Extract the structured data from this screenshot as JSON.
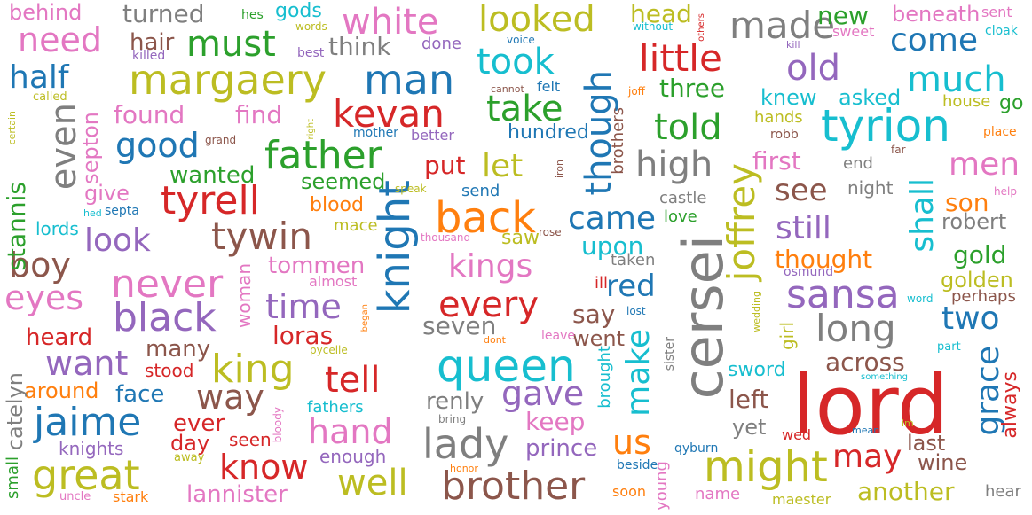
{
  "palette": {
    "blue": "#1f77b4",
    "orange": "#ff7f0e",
    "green": "#2ca02c",
    "red": "#d62728",
    "purple": "#9467bd",
    "brown": "#8c564b",
    "pink": "#e377c2",
    "gray": "#7f7f7f",
    "olive": "#bcbd22",
    "cyan": "#17becf"
  },
  "words": [
    {
      "text": "lord",
      "color": "red"
    },
    {
      "text": "cersei",
      "color": "gray"
    },
    {
      "text": "queen",
      "color": "cyan"
    },
    {
      "text": "tyrion",
      "color": "cyan"
    },
    {
      "text": "knight",
      "color": "blue"
    },
    {
      "text": "joffrey",
      "color": "olive"
    },
    {
      "text": "margaery",
      "color": "olive"
    },
    {
      "text": "man",
      "color": "blue"
    },
    {
      "text": "father",
      "color": "green"
    },
    {
      "text": "king",
      "color": "olive"
    },
    {
      "text": "black",
      "color": "purple"
    },
    {
      "text": "never",
      "color": "pink"
    },
    {
      "text": "back",
      "color": "orange"
    },
    {
      "text": "might",
      "color": "olive"
    },
    {
      "text": "brother",
      "color": "brown"
    },
    {
      "text": "jaime",
      "color": "blue"
    },
    {
      "text": "great",
      "color": "olive"
    },
    {
      "text": "lady",
      "color": "gray"
    },
    {
      "text": "sansa",
      "color": "purple"
    },
    {
      "text": "tyrell",
      "color": "red"
    },
    {
      "text": "tywin",
      "color": "brown"
    },
    {
      "text": "kevan",
      "color": "red"
    },
    {
      "text": "little",
      "color": "red"
    },
    {
      "text": "made",
      "color": "gray"
    },
    {
      "text": "white",
      "color": "pink"
    },
    {
      "text": "must",
      "color": "green"
    },
    {
      "text": "looked",
      "color": "olive"
    },
    {
      "text": "even",
      "color": "gray"
    },
    {
      "text": "took",
      "color": "cyan"
    },
    {
      "text": "take",
      "color": "green"
    },
    {
      "text": "though",
      "color": "blue"
    },
    {
      "text": "told",
      "color": "green"
    },
    {
      "text": "high",
      "color": "gray"
    },
    {
      "text": "much",
      "color": "cyan"
    },
    {
      "text": "old",
      "color": "purple"
    },
    {
      "text": "come",
      "color": "blue"
    },
    {
      "text": "need",
      "color": "pink"
    },
    {
      "text": "half",
      "color": "blue"
    },
    {
      "text": "good",
      "color": "blue"
    },
    {
      "text": "look",
      "color": "purple"
    },
    {
      "text": "boy",
      "color": "brown"
    },
    {
      "text": "eyes",
      "color": "pink"
    },
    {
      "text": "time",
      "color": "purple"
    },
    {
      "text": "kings",
      "color": "pink"
    },
    {
      "text": "every",
      "color": "red"
    },
    {
      "text": "came",
      "color": "blue"
    },
    {
      "text": "let",
      "color": "olive"
    },
    {
      "text": "still",
      "color": "purple"
    },
    {
      "text": "see",
      "color": "brown"
    },
    {
      "text": "shall",
      "color": "cyan"
    },
    {
      "text": "men",
      "color": "pink"
    },
    {
      "text": "long",
      "color": "gray"
    },
    {
      "text": "two",
      "color": "blue"
    },
    {
      "text": "grace",
      "color": "blue"
    },
    {
      "text": "make",
      "color": "cyan"
    },
    {
      "text": "tell",
      "color": "red"
    },
    {
      "text": "hand",
      "color": "pink"
    },
    {
      "text": "know",
      "color": "red"
    },
    {
      "text": "well",
      "color": "olive"
    },
    {
      "text": "way",
      "color": "brown"
    },
    {
      "text": "gave",
      "color": "purple"
    },
    {
      "text": "want",
      "color": "purple"
    },
    {
      "text": "may",
      "color": "red"
    },
    {
      "text": "us",
      "color": "orange"
    },
    {
      "text": "red",
      "color": "blue"
    },
    {
      "text": "loras",
      "color": "red"
    },
    {
      "text": "stannis",
      "color": "green"
    },
    {
      "text": "across",
      "color": "brown"
    },
    {
      "text": "gold",
      "color": "green"
    },
    {
      "text": "thought",
      "color": "orange"
    },
    {
      "text": "first",
      "color": "pink"
    },
    {
      "text": "three",
      "color": "green"
    },
    {
      "text": "new",
      "color": "green"
    },
    {
      "text": "head",
      "color": "olive"
    },
    {
      "text": "found",
      "color": "pink"
    },
    {
      "text": "find",
      "color": "pink"
    },
    {
      "text": "turned",
      "color": "gray"
    },
    {
      "text": "hair",
      "color": "brown"
    },
    {
      "text": "think",
      "color": "gray"
    },
    {
      "text": "put",
      "color": "red"
    },
    {
      "text": "seemed",
      "color": "green"
    },
    {
      "text": "wanted",
      "color": "green"
    },
    {
      "text": "tommen",
      "color": "pink"
    },
    {
      "text": "upon",
      "color": "cyan"
    },
    {
      "text": "seven",
      "color": "gray"
    },
    {
      "text": "say",
      "color": "brown"
    },
    {
      "text": "went",
      "color": "brown"
    },
    {
      "text": "renly",
      "color": "gray"
    },
    {
      "text": "keep",
      "color": "pink"
    },
    {
      "text": "prince",
      "color": "purple"
    },
    {
      "text": "heard",
      "color": "red"
    },
    {
      "text": "many",
      "color": "brown"
    },
    {
      "text": "face",
      "color": "blue"
    },
    {
      "text": "around",
      "color": "orange"
    },
    {
      "text": "ever",
      "color": "red"
    },
    {
      "text": "day",
      "color": "red"
    },
    {
      "text": "lannister",
      "color": "pink"
    },
    {
      "text": "enough",
      "color": "purple"
    },
    {
      "text": "wine",
      "color": "brown"
    },
    {
      "text": "last",
      "color": "brown"
    },
    {
      "text": "another",
      "color": "olive"
    },
    {
      "text": "robert",
      "color": "gray"
    },
    {
      "text": "son",
      "color": "orange"
    },
    {
      "text": "golden",
      "color": "olive"
    },
    {
      "text": "asked",
      "color": "cyan"
    },
    {
      "text": "knew",
      "color": "cyan"
    },
    {
      "text": "beneath",
      "color": "pink"
    },
    {
      "text": "catelyn",
      "color": "gray"
    },
    {
      "text": "left",
      "color": "brown"
    },
    {
      "text": "yet",
      "color": "gray"
    },
    {
      "text": "sword",
      "color": "cyan"
    },
    {
      "text": "always",
      "color": "red"
    },
    {
      "text": "behind",
      "color": "pink"
    },
    {
      "text": "hundred",
      "color": "blue"
    },
    {
      "text": "septon",
      "color": "pink"
    },
    {
      "text": "give",
      "color": "pink"
    },
    {
      "text": "lords",
      "color": "cyan"
    },
    {
      "text": "blood",
      "color": "orange"
    },
    {
      "text": "mace",
      "color": "olive"
    },
    {
      "text": "saw",
      "color": "olive"
    },
    {
      "text": "stood",
      "color": "red"
    },
    {
      "text": "knights",
      "color": "purple"
    },
    {
      "text": "seen",
      "color": "red"
    },
    {
      "text": "stark",
      "color": "orange"
    },
    {
      "text": "small",
      "color": "green"
    },
    {
      "text": "girl",
      "color": "olive"
    },
    {
      "text": "perhaps",
      "color": "brown"
    },
    {
      "text": "hear",
      "color": "gray"
    },
    {
      "text": "maester",
      "color": "olive"
    },
    {
      "text": "name",
      "color": "pink"
    },
    {
      "text": "soon",
      "color": "orange"
    },
    {
      "text": "young",
      "color": "pink"
    },
    {
      "text": "brought",
      "color": "cyan"
    },
    {
      "text": "woman",
      "color": "pink"
    },
    {
      "text": "fathers",
      "color": "cyan"
    },
    {
      "text": "ill",
      "color": "red"
    },
    {
      "text": "taken",
      "color": "gray"
    },
    {
      "text": "night",
      "color": "gray"
    },
    {
      "text": "castle",
      "color": "gray"
    },
    {
      "text": "love",
      "color": "green"
    },
    {
      "text": "end",
      "color": "gray"
    },
    {
      "text": "hands",
      "color": "olive"
    },
    {
      "text": "go",
      "color": "green"
    },
    {
      "text": "house",
      "color": "olive"
    },
    {
      "text": "send",
      "color": "blue"
    },
    {
      "text": "felt",
      "color": "blue"
    },
    {
      "text": "done",
      "color": "purple"
    },
    {
      "text": "gods",
      "color": "cyan"
    },
    {
      "text": "better",
      "color": "purple"
    },
    {
      "text": "sweet",
      "color": "pink"
    },
    {
      "text": "sent",
      "color": "pink"
    },
    {
      "text": "brothers",
      "color": "brown"
    },
    {
      "text": "almost",
      "color": "pink"
    },
    {
      "text": "wed",
      "color": "red"
    },
    {
      "text": "osmund",
      "color": "purple"
    },
    {
      "text": "qyburn",
      "color": "blue"
    },
    {
      "text": "beside",
      "color": "blue"
    },
    {
      "text": "mother",
      "color": "blue"
    },
    {
      "text": "hes",
      "color": "green"
    },
    {
      "text": "killed",
      "color": "purple"
    },
    {
      "text": "words",
      "color": "olive"
    },
    {
      "text": "best",
      "color": "purple"
    },
    {
      "text": "voice",
      "color": "blue"
    },
    {
      "text": "without",
      "color": "cyan"
    },
    {
      "text": "cannot",
      "color": "brown"
    },
    {
      "text": "joff",
      "color": "orange"
    },
    {
      "text": "robb",
      "color": "brown"
    },
    {
      "text": "far",
      "color": "brown"
    },
    {
      "text": "place",
      "color": "orange"
    },
    {
      "text": "cloak",
      "color": "cyan"
    },
    {
      "text": "kill",
      "color": "purple"
    },
    {
      "text": "others",
      "color": "red"
    },
    {
      "text": "called",
      "color": "olive"
    },
    {
      "text": "certain",
      "color": "olive"
    },
    {
      "text": "grand",
      "color": "brown"
    },
    {
      "text": "right",
      "color": "olive"
    },
    {
      "text": "speak",
      "color": "olive"
    },
    {
      "text": "iron",
      "color": "brown"
    },
    {
      "text": "help",
      "color": "pink"
    },
    {
      "text": "septa",
      "color": "blue"
    },
    {
      "text": "hed",
      "color": "cyan"
    },
    {
      "text": "thousand",
      "color": "pink"
    },
    {
      "text": "rose",
      "color": "brown"
    },
    {
      "text": "lost",
      "color": "blue"
    },
    {
      "text": "leave",
      "color": "pink"
    },
    {
      "text": "dont",
      "color": "orange"
    },
    {
      "text": "began",
      "color": "orange"
    },
    {
      "text": "pycelle",
      "color": "olive"
    },
    {
      "text": "bloody",
      "color": "pink"
    },
    {
      "text": "away",
      "color": "olive"
    },
    {
      "text": "bring",
      "color": "gray"
    },
    {
      "text": "honor",
      "color": "orange"
    },
    {
      "text": "uncle",
      "color": "pink"
    },
    {
      "text": "sister",
      "color": "gray"
    },
    {
      "text": "wedding",
      "color": "olive"
    },
    {
      "text": "word",
      "color": "cyan"
    },
    {
      "text": "part",
      "color": "cyan"
    },
    {
      "text": "something",
      "color": "cyan"
    },
    {
      "text": "mean",
      "color": "blue"
    },
    {
      "text": "im",
      "color": "olive"
    }
  ]
}
